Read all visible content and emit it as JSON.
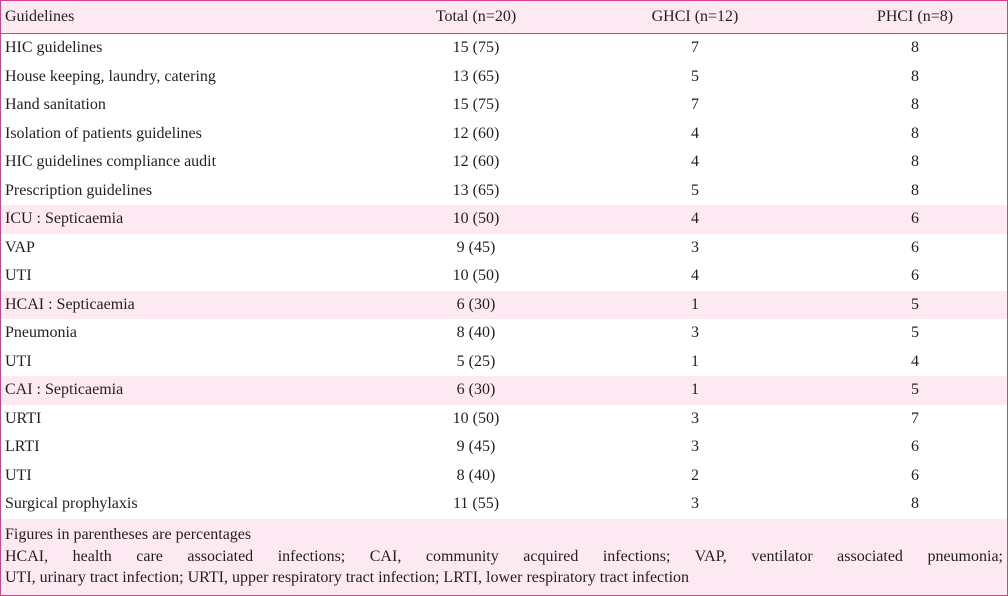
{
  "table": {
    "headers": [
      "Guidelines",
      "Total (n=20)",
      "GHCI (n=12)",
      "PHCI (n=8)"
    ],
    "rows": [
      {
        "label": "HIC guidelines",
        "total": "15 (75)",
        "ghci": "7",
        "phci": "8",
        "band": false
      },
      {
        "label": "House keeping, laundry, catering",
        "total": "13 (65)",
        "ghci": "5",
        "phci": "8",
        "band": false
      },
      {
        "label": "Hand sanitation",
        "total": "15 (75)",
        "ghci": "7",
        "phci": "8",
        "band": false
      },
      {
        "label": "Isolation of patients guidelines",
        "total": "12 (60)",
        "ghci": "4",
        "phci": "8",
        "band": false
      },
      {
        "label": "HIC guidelines compliance audit",
        "total": "12 (60)",
        "ghci": "4",
        "phci": "8",
        "band": false
      },
      {
        "label": "Prescription guidelines",
        "total": "13 (65)",
        "ghci": "5",
        "phci": "8",
        "band": false
      },
      {
        "label": "ICU : Septicaemia",
        "total": "10 (50)",
        "ghci": "4",
        "phci": "6",
        "band": true
      },
      {
        "label": "VAP",
        "total": "9 (45)",
        "ghci": "3",
        "phci": "6",
        "band": false
      },
      {
        "label": "UTI",
        "total": "10 (50)",
        "ghci": "4",
        "phci": "6",
        "band": false
      },
      {
        "label": "HCAI : Septicaemia",
        "total": "6 (30)",
        "ghci": "1",
        "phci": "5",
        "band": true
      },
      {
        "label": "Pneumonia",
        "total": "8 (40)",
        "ghci": "3",
        "phci": "5",
        "band": false
      },
      {
        "label": "UTI",
        "total": "5 (25)",
        "ghci": "1",
        "phci": "4",
        "band": false
      },
      {
        "label": "CAI : Septicaemia",
        "total": "6 (30)",
        "ghci": "1",
        "phci": "5",
        "band": true
      },
      {
        "label": "URTI",
        "total": "10 (50)",
        "ghci": "3",
        "phci": "7",
        "band": false
      },
      {
        "label": "LRTI",
        "total": "9 (45)",
        "ghci": "3",
        "phci": "6",
        "band": false
      },
      {
        "label": "UTI",
        "total": "8 (40)",
        "ghci": "2",
        "phci": "6",
        "band": false
      },
      {
        "label": "Surgical prophylaxis",
        "total": "11 (55)",
        "ghci": "3",
        "phci": "8",
        "band": false
      }
    ]
  },
  "footnotes": {
    "note": "Figures in parentheses are percentages",
    "abbrev_line1": "HCAI, health care associated infections; CAI, community acquired infections; VAP, ventilator associated pneumonia;",
    "abbrev_line2": "UTI, urinary tract infection; URTI, upper respiratory tract infection; LRTI, lower respiratory tract infection"
  },
  "colors": {
    "border": "#d4408a",
    "band_background": "#fce9f2",
    "text": "#231f20"
  }
}
